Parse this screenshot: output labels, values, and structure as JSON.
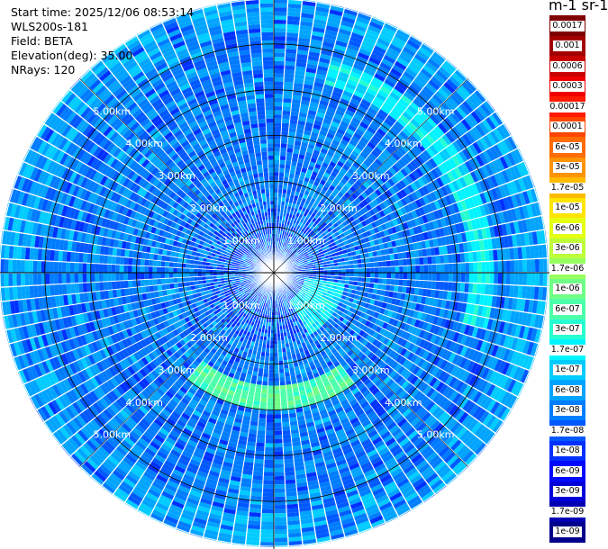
{
  "meta": {
    "start_time": "Start time: 2025/12/06 08:53:14",
    "instrument": "WLS200s-181",
    "field": "Field: BETA",
    "elevation": "Elevation(deg): 35.00",
    "nrays": "NRays: 120"
  },
  "colorbar": {
    "title": "m-1 sr-1",
    "levels": [
      {
        "label": "0.0017",
        "color": "#7f0000"
      },
      {
        "label": "0.001",
        "color": "#a30000"
      },
      {
        "label": "0.0006",
        "color": "#c80000"
      },
      {
        "label": "0.0003",
        "color": "#ef0000"
      },
      {
        "label": "0.00017",
        "color": "#ff1a00"
      },
      {
        "label": "0.0001",
        "color": "#ff4400"
      },
      {
        "label": "6e-05",
        "color": "#ff6c00"
      },
      {
        "label": "3e-05",
        "color": "#ff9300"
      },
      {
        "label": "1.7e-05",
        "color": "#ffbb00"
      },
      {
        "label": "1e-05",
        "color": "#ffe400"
      },
      {
        "label": "6e-06",
        "color": "#e4ff13"
      },
      {
        "label": "3e-06",
        "color": "#bcff3a"
      },
      {
        "label": "1.7e-06",
        "color": "#97ff60"
      },
      {
        "label": "1e-06",
        "color": "#70ff86"
      },
      {
        "label": "6e-07",
        "color": "#4dffaa"
      },
      {
        "label": "3e-07",
        "color": "#26ffd1"
      },
      {
        "label": "1.7e-07",
        "color": "#00f4ff"
      },
      {
        "label": "1e-07",
        "color": "#00ccff"
      },
      {
        "label": "6e-08",
        "color": "#00a4ff"
      },
      {
        "label": "3e-08",
        "color": "#007cff"
      },
      {
        "label": "1.7e-08",
        "color": "#0058ff"
      },
      {
        "label": "1e-08",
        "color": "#0030ff"
      },
      {
        "label": "6e-09",
        "color": "#0008ff"
      },
      {
        "label": "3e-09",
        "color": "#0000d9"
      },
      {
        "label": "1.7e-09",
        "color": "#0000b2"
      },
      {
        "label": "1e-09",
        "color": "#00008b"
      }
    ]
  },
  "chart_data": {
    "type": "heatmap",
    "projection": "polar (PPI scan)",
    "field": "BETA",
    "units": "m-1 sr-1",
    "n_rays": 120,
    "elevation_deg": 35.0,
    "range_rings_km": [
      1.0,
      2.0,
      3.0,
      4.0,
      5.0
    ],
    "ring_labels": [
      "1.00km",
      "2.00km",
      "3.00km",
      "4.00km",
      "5.00km"
    ],
    "max_range_km": 6.0,
    "background_level": "3e-08",
    "features": [
      {
        "description": "arc",
        "range_km_from": 4.3,
        "range_km_to": 4.8,
        "azimuth_deg_from": 15,
        "azimuth_deg_to": 105,
        "level": "1.7e-07"
      },
      {
        "description": "patch",
        "range_km_from": 2.5,
        "range_km_to": 3.0,
        "azimuth_deg_from": 145,
        "azimuth_deg_to": 220,
        "level": "6e-07"
      },
      {
        "description": "patch",
        "range_km_from": 0.7,
        "range_km_to": 1.6,
        "azimuth_deg_from": 100,
        "azimuth_deg_to": 150,
        "level": "1.7e-07"
      },
      {
        "description": "rim",
        "range_km_from": 5.3,
        "range_km_to": 6.0,
        "azimuth_deg_from": 0,
        "azimuth_deg_to": 360,
        "level": "6e-08"
      }
    ]
  }
}
